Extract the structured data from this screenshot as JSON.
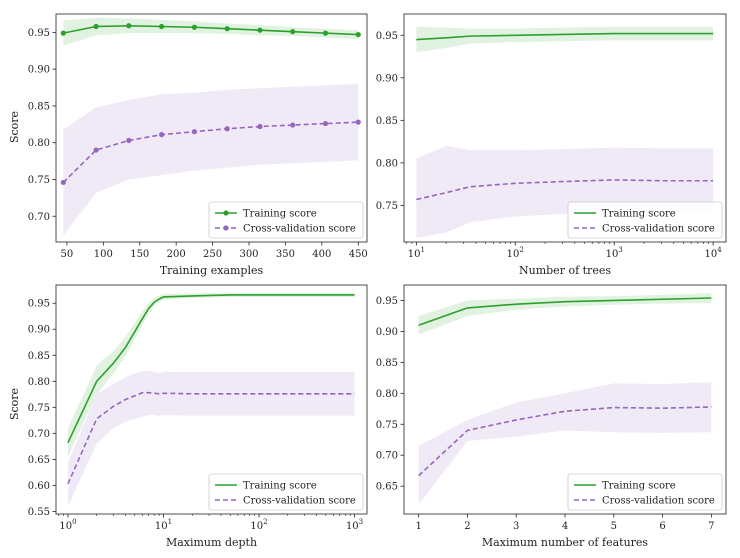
{
  "figure": {
    "ylabel": "Score"
  },
  "chart_data": [
    {
      "type": "line",
      "xlabel": "Training examples",
      "ylabel": "Score",
      "xscale": "linear",
      "xlim": [
        35,
        462
      ],
      "ylim": [
        0.665,
        0.975
      ],
      "xticks": [
        50,
        100,
        150,
        200,
        250,
        300,
        350,
        400,
        450
      ],
      "xtick_labels": [
        "50",
        "100",
        "150",
        "200",
        "250",
        "300",
        "350",
        "400",
        "450"
      ],
      "yticks": [
        0.7,
        0.75,
        0.8,
        0.85,
        0.9,
        0.95
      ],
      "ytick_labels": [
        "0.70",
        "0.75",
        "0.80",
        "0.85",
        "0.90",
        "0.95"
      ],
      "legend": "lower-right",
      "series": [
        {
          "name": "Training score",
          "color": "#2ca02c",
          "linestyle": "solid",
          "markers": true,
          "x": [
            45,
            90,
            135,
            180,
            225,
            270,
            315,
            360,
            405,
            450
          ],
          "y": [
            0.949,
            0.958,
            0.959,
            0.958,
            0.957,
            0.955,
            0.953,
            0.951,
            0.949,
            0.947
          ],
          "band_low": [
            0.932,
            0.946,
            0.949,
            0.949,
            0.949,
            0.948,
            0.946,
            0.945,
            0.943,
            0.941
          ],
          "band_high": [
            0.966,
            0.97,
            0.969,
            0.967,
            0.965,
            0.962,
            0.96,
            0.957,
            0.955,
            0.953
          ]
        },
        {
          "name": "Cross-validation score",
          "color": "#9467bd",
          "linestyle": "dashed",
          "markers": true,
          "x": [
            45,
            90,
            135,
            180,
            225,
            270,
            315,
            360,
            405,
            450
          ],
          "y": [
            0.746,
            0.79,
            0.803,
            0.811,
            0.815,
            0.819,
            0.822,
            0.824,
            0.826,
            0.828
          ],
          "band_low": [
            0.674,
            0.732,
            0.75,
            0.756,
            0.762,
            0.766,
            0.77,
            0.772,
            0.774,
            0.776
          ],
          "band_high": [
            0.818,
            0.848,
            0.858,
            0.866,
            0.868,
            0.872,
            0.874,
            0.876,
            0.878,
            0.88
          ]
        }
      ]
    },
    {
      "type": "line",
      "xlabel": "Number of trees",
      "xscale": "log",
      "xlim": [
        7.5,
        13500
      ],
      "ylim": [
        0.707,
        0.975
      ],
      "xticks": [
        10,
        100,
        1000,
        10000
      ],
      "xtick_labels": [
        "10^1",
        "10^2",
        "10^3",
        "10^4"
      ],
      "yticks": [
        0.75,
        0.8,
        0.85,
        0.9,
        0.95
      ],
      "ytick_labels": [
        "0.75",
        "0.80",
        "0.85",
        "0.90",
        "0.95"
      ],
      "legend": "lower-right",
      "series": [
        {
          "name": "Training score",
          "color": "#2ca02c",
          "linestyle": "solid",
          "markers": false,
          "x": [
            10,
            20,
            35,
            100,
            300,
            1000,
            3000,
            10000
          ],
          "y": [
            0.945,
            0.947,
            0.949,
            0.95,
            0.951,
            0.952,
            0.952,
            0.952
          ],
          "band_low": [
            0.93,
            0.935,
            0.94,
            0.942,
            0.943,
            0.944,
            0.944,
            0.944
          ],
          "band_high": [
            0.96,
            0.959,
            0.958,
            0.958,
            0.959,
            0.96,
            0.96,
            0.96
          ]
        },
        {
          "name": "Cross-validation score",
          "color": "#9467bd",
          "linestyle": "dashed",
          "markers": false,
          "x": [
            10,
            20,
            35,
            100,
            300,
            1000,
            3000,
            10000
          ],
          "y": [
            0.757,
            0.765,
            0.772,
            0.776,
            0.778,
            0.78,
            0.779,
            0.779
          ],
          "band_low": [
            0.712,
            0.718,
            0.73,
            0.737,
            0.74,
            0.742,
            0.741,
            0.741
          ],
          "band_high": [
            0.805,
            0.82,
            0.815,
            0.815,
            0.816,
            0.818,
            0.817,
            0.817
          ]
        }
      ]
    },
    {
      "type": "line",
      "xlabel": "Maximum depth",
      "ylabel": "Score",
      "xscale": "log",
      "xlim": [
        0.75,
        1350
      ],
      "ylim": [
        0.545,
        0.985
      ],
      "xticks": [
        1,
        10,
        100,
        1000
      ],
      "xtick_labels": [
        "10^0",
        "10^1",
        "10^2",
        "10^3"
      ],
      "yticks": [
        0.55,
        0.6,
        0.65,
        0.7,
        0.75,
        0.8,
        0.85,
        0.9,
        0.95
      ],
      "ytick_labels": [
        "0.55",
        "0.60",
        "0.65",
        "0.70",
        "0.75",
        "0.80",
        "0.85",
        "0.90",
        "0.95"
      ],
      "legend": "lower-right",
      "series": [
        {
          "name": "Training score",
          "color": "#2ca02c",
          "linestyle": "solid",
          "markers": false,
          "x": [
            1,
            2,
            3,
            4,
            5,
            6,
            7,
            8,
            9,
            10,
            20,
            50,
            100,
            1000
          ],
          "y": [
            0.682,
            0.8,
            0.835,
            0.865,
            0.895,
            0.92,
            0.94,
            0.952,
            0.958,
            0.962,
            0.964,
            0.966,
            0.966,
            0.966
          ],
          "band_low": [
            0.655,
            0.775,
            0.815,
            0.848,
            0.88,
            0.908,
            0.93,
            0.944,
            0.952,
            0.957,
            0.96,
            0.962,
            0.962,
            0.962
          ],
          "band_high": [
            0.71,
            0.83,
            0.858,
            0.885,
            0.912,
            0.935,
            0.952,
            0.96,
            0.965,
            0.968,
            0.969,
            0.97,
            0.97,
            0.97
          ]
        },
        {
          "name": "Cross-validation score",
          "color": "#9467bd",
          "linestyle": "dashed",
          "markers": false,
          "x": [
            1,
            2,
            3,
            4,
            5,
            6,
            7,
            8,
            9,
            10,
            20,
            50,
            100,
            1000
          ],
          "y": [
            0.603,
            0.728,
            0.752,
            0.765,
            0.772,
            0.778,
            0.778,
            0.777,
            0.776,
            0.777,
            0.776,
            0.776,
            0.776,
            0.776
          ],
          "band_low": [
            0.56,
            0.68,
            0.71,
            0.722,
            0.728,
            0.732,
            0.735,
            0.735,
            0.733,
            0.735,
            0.734,
            0.734,
            0.734,
            0.734
          ],
          "band_high": [
            0.645,
            0.775,
            0.795,
            0.808,
            0.815,
            0.82,
            0.82,
            0.818,
            0.815,
            0.818,
            0.818,
            0.818,
            0.818,
            0.818
          ]
        }
      ]
    },
    {
      "type": "line",
      "xlabel": "Maximum number of features",
      "xscale": "linear",
      "xlim": [
        0.7,
        7.3
      ],
      "ylim": [
        0.605,
        0.975
      ],
      "xticks": [
        1,
        2,
        3,
        4,
        5,
        6,
        7
      ],
      "xtick_labels": [
        "1",
        "2",
        "3",
        "4",
        "5",
        "6",
        "7"
      ],
      "yticks": [
        0.65,
        0.7,
        0.75,
        0.8,
        0.85,
        0.9,
        0.95
      ],
      "ytick_labels": [
        "0.65",
        "0.70",
        "0.75",
        "0.80",
        "0.85",
        "0.90",
        "0.95"
      ],
      "legend": "lower-right",
      "series": [
        {
          "name": "Training score",
          "color": "#2ca02c",
          "linestyle": "solid",
          "markers": false,
          "x": [
            1,
            2,
            3,
            4,
            5,
            6,
            7
          ],
          "y": [
            0.91,
            0.938,
            0.944,
            0.948,
            0.95,
            0.952,
            0.954
          ],
          "band_low": [
            0.895,
            0.925,
            0.935,
            0.94,
            0.943,
            0.945,
            0.946
          ],
          "band_high": [
            0.925,
            0.95,
            0.953,
            0.956,
            0.957,
            0.959,
            0.962
          ]
        },
        {
          "name": "Cross-validation score",
          "color": "#9467bd",
          "linestyle": "dashed",
          "markers": false,
          "x": [
            1,
            2,
            3,
            4,
            5,
            6,
            7
          ],
          "y": [
            0.667,
            0.74,
            0.757,
            0.771,
            0.777,
            0.776,
            0.778
          ],
          "band_low": [
            0.62,
            0.723,
            0.73,
            0.74,
            0.737,
            0.736,
            0.737
          ],
          "band_high": [
            0.715,
            0.757,
            0.785,
            0.8,
            0.816,
            0.815,
            0.818
          ]
        }
      ]
    }
  ]
}
